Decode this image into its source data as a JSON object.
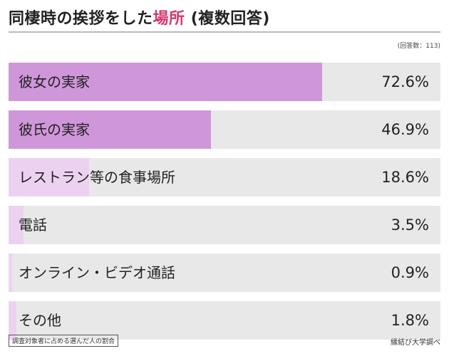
{
  "chart_data": {
    "type": "bar",
    "orientation": "horizontal",
    "title_main": "同棲時の挨拶をした",
    "title_highlight": "場所",
    "title_suffix": " (複数回答)",
    "sample_note": "(回答数：113)",
    "categories": [
      "彼女の実家",
      "彼氏の実家",
      "レストラン等の食事場所",
      "電話",
      "オンライン・ビデオ通話",
      "その他"
    ],
    "values": [
      72.6,
      46.9,
      18.6,
      3.5,
      0.9,
      1.8
    ],
    "value_labels": [
      "72.6%",
      "46.9%",
      "18.6%",
      "3.5%",
      "0.9%",
      "1.8%"
    ],
    "xlim": [
      0,
      100
    ],
    "grid": false,
    "legend": "none",
    "footnote": "調査対象者に占める選んだ人の割合",
    "source": "縁結び大学調べ"
  },
  "colors": {
    "bar_strong": "#cf97d9",
    "bar_light": "#ecd2f0",
    "track": "#e8e8e8",
    "title_highlight": "#d4396a"
  }
}
